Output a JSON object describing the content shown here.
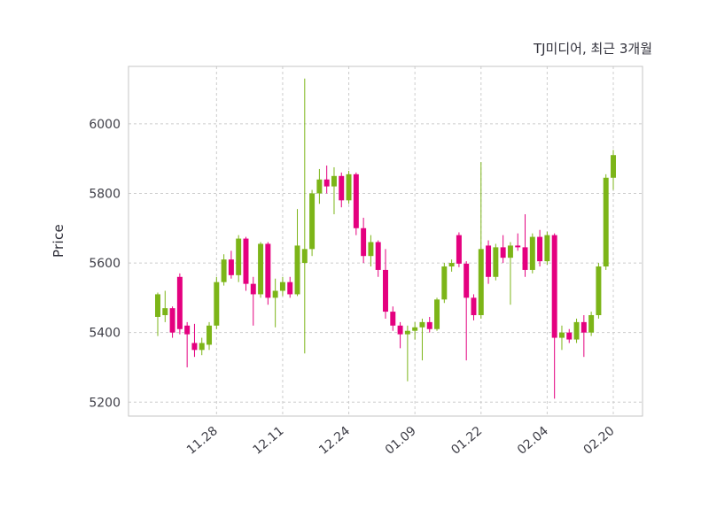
{
  "chart": {
    "title": "TJ미디어, 최근 3개월",
    "y_axis_label": "Price"
  },
  "chart_data": {
    "type": "candlestick",
    "title": "TJ미디어, 최근 3개월",
    "ylabel": "Price",
    "xlabel": "",
    "grid": true,
    "legend": "none",
    "y_ticks": [
      5200,
      5400,
      5600,
      5800,
      6000
    ],
    "y_range": [
      5160,
      6165
    ],
    "x_ticks": [
      {
        "index": 8,
        "label": "11.28"
      },
      {
        "index": 17,
        "label": "12.11"
      },
      {
        "index": 26,
        "label": "12.24"
      },
      {
        "index": 35,
        "label": "01.09"
      },
      {
        "index": 44,
        "label": "01.22"
      },
      {
        "index": 53,
        "label": "02.04"
      },
      {
        "index": 62,
        "label": "02.20"
      }
    ],
    "colors": {
      "up": "#7cb518",
      "down": "#e4007f",
      "grid": "#cccccc",
      "frame": "#c4c4c4",
      "tick_text": "#3d3d46"
    },
    "candles_format": [
      "open",
      "high",
      "low",
      "close"
    ],
    "candles": [
      [
        5445,
        5515,
        5390,
        5510
      ],
      [
        5450,
        5520,
        5430,
        5470
      ],
      [
        5470,
        5475,
        5385,
        5400
      ],
      [
        5560,
        5570,
        5395,
        5410
      ],
      [
        5420,
        5430,
        5300,
        5395
      ],
      [
        5370,
        5425,
        5330,
        5350
      ],
      [
        5350,
        5385,
        5335,
        5370
      ],
      [
        5365,
        5430,
        5350,
        5420
      ],
      [
        5420,
        5560,
        5410,
        5545
      ],
      [
        5545,
        5625,
        5535,
        5610
      ],
      [
        5610,
        5635,
        5555,
        5565
      ],
      [
        5565,
        5680,
        5545,
        5670
      ],
      [
        5670,
        5675,
        5520,
        5540
      ],
      [
        5540,
        5560,
        5420,
        5510
      ],
      [
        5510,
        5660,
        5500,
        5655
      ],
      [
        5655,
        5660,
        5480,
        5500
      ],
      [
        5500,
        5555,
        5415,
        5520
      ],
      [
        5520,
        5560,
        5505,
        5545
      ],
      [
        5545,
        5560,
        5500,
        5510
      ],
      [
        5510,
        5755,
        5505,
        5650
      ],
      [
        5600,
        6130,
        5340,
        5640
      ],
      [
        5640,
        5810,
        5620,
        5800
      ],
      [
        5800,
        5870,
        5770,
        5840
      ],
      [
        5840,
        5880,
        5800,
        5820
      ],
      [
        5820,
        5875,
        5740,
        5850
      ],
      [
        5850,
        5860,
        5760,
        5780
      ],
      [
        5780,
        5865,
        5770,
        5855
      ],
      [
        5855,
        5860,
        5680,
        5700
      ],
      [
        5700,
        5730,
        5600,
        5620
      ],
      [
        5620,
        5680,
        5590,
        5660
      ],
      [
        5660,
        5665,
        5560,
        5580
      ],
      [
        5580,
        5640,
        5440,
        5460
      ],
      [
        5460,
        5475,
        5405,
        5420
      ],
      [
        5420,
        5430,
        5355,
        5395
      ],
      [
        5395,
        5420,
        5260,
        5405
      ],
      [
        5405,
        5430,
        5380,
        5415
      ],
      [
        5415,
        5440,
        5320,
        5430
      ],
      [
        5430,
        5445,
        5400,
        5410
      ],
      [
        5410,
        5500,
        5405,
        5495
      ],
      [
        5495,
        5600,
        5485,
        5590
      ],
      [
        5590,
        5610,
        5575,
        5600
      ],
      [
        5680,
        5688,
        5588,
        5598
      ],
      [
        5598,
        5605,
        5320,
        5500
      ],
      [
        5500,
        5510,
        5435,
        5450
      ],
      [
        5450,
        5890,
        5440,
        5640
      ],
      [
        5650,
        5665,
        5540,
        5560
      ],
      [
        5560,
        5655,
        5550,
        5645
      ],
      [
        5645,
        5680,
        5600,
        5615
      ],
      [
        5615,
        5660,
        5480,
        5650
      ],
      [
        5650,
        5685,
        5635,
        5645
      ],
      [
        5645,
        5740,
        5560,
        5580
      ],
      [
        5580,
        5685,
        5570,
        5675
      ],
      [
        5675,
        5695,
        5590,
        5605
      ],
      [
        5605,
        5690,
        5595,
        5680
      ],
      [
        5680,
        5685,
        5210,
        5385
      ],
      [
        5385,
        5420,
        5350,
        5400
      ],
      [
        5400,
        5410,
        5370,
        5380
      ],
      [
        5380,
        5440,
        5370,
        5430
      ],
      [
        5430,
        5450,
        5330,
        5400
      ],
      [
        5400,
        5460,
        5390,
        5450
      ],
      [
        5450,
        5600,
        5440,
        5590
      ],
      [
        5590,
        5855,
        5580,
        5845
      ],
      [
        5845,
        5925,
        5810,
        5910
      ]
    ]
  }
}
